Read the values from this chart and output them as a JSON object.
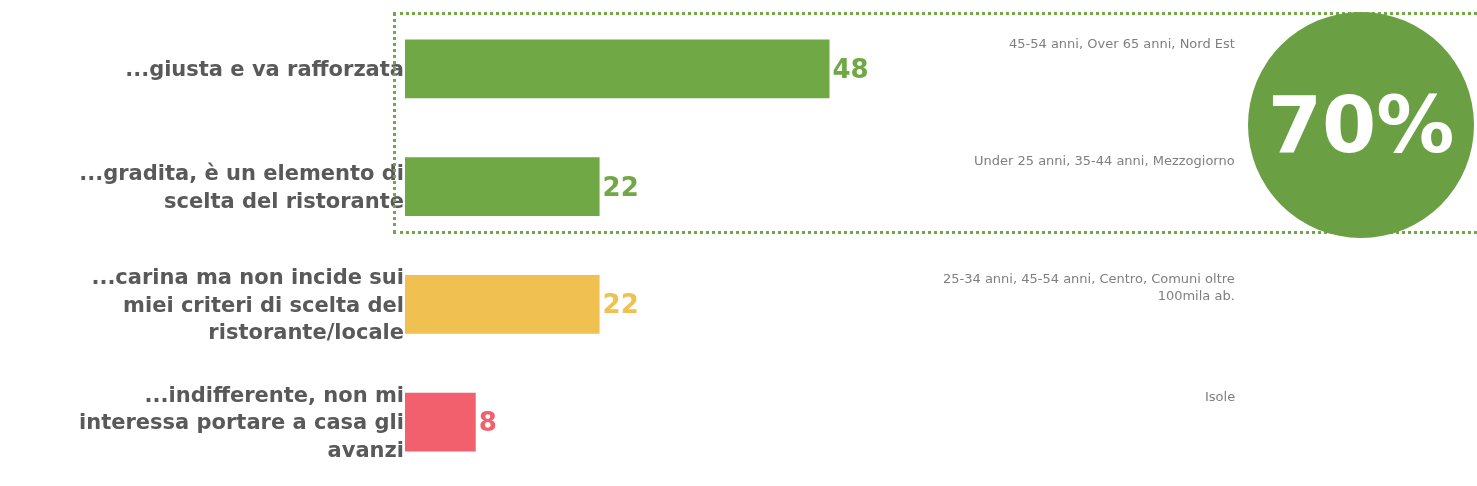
{
  "chart_data": {
    "type": "bar",
    "orientation": "horizontal",
    "data_labels": true,
    "categories": [
      "...giusta e va rafforzata",
      "...gradita, è un elemento di scelta del ristorante",
      "...carina ma non incide sui miei criteri di scelta del ristorante/locale",
      "...indifferente, non mi interessa portare a casa gli avanzi"
    ],
    "values": [
      48,
      22,
      22,
      8
    ],
    "colors": [
      "#70a845",
      "#70a845",
      "#f0c050",
      "#f2606e"
    ],
    "annotations": [
      "45-54 anni, Over 65 anni, Nord Est",
      "Under 25 anni, 35-44 anni, Mezzogiorno",
      "25-34 anni, 45-54 anni, Centro, Comuni oltre 100mila ab.",
      "Isole",
      "70%"
    ]
  }
}
